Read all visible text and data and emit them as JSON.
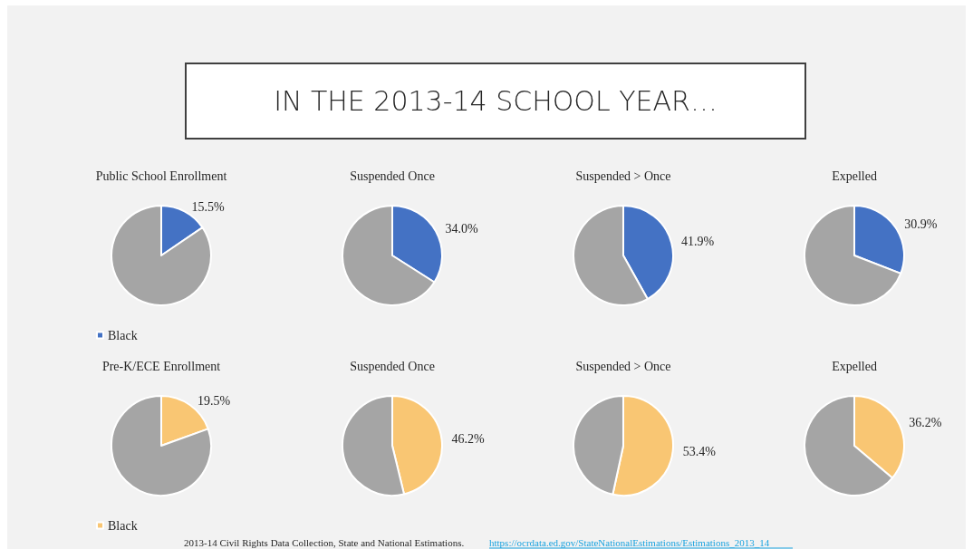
{
  "chart_data": [
    {
      "type": "other",
      "title": "IN THE 2013-14 SCHOOL YEAR…",
      "annotations": [
        "2013-14 Civil Rights Data Collection, State and National Estimations.",
        "https://ocrdata.ed.gov/StateNationalEstimations/Estimations_2013_14"
      ]
    },
    {
      "type": "pie",
      "title": "Public School Enrollment",
      "categories": [
        "Black",
        null
      ],
      "values": [
        15.5,
        84.5
      ],
      "colors": [
        "#4472c4",
        "#a5a5a5"
      ],
      "value_labels": [
        "15.5%",
        null
      ],
      "legend": "bottom"
    },
    {
      "type": "pie",
      "title": "Suspended Once",
      "categories": [
        null,
        null
      ],
      "values": [
        34.0,
        66.0
      ],
      "colors": [
        "#4472c4",
        "#a5a5a5"
      ],
      "value_labels": [
        "34.0%",
        null
      ]
    },
    {
      "type": "pie",
      "title": "Suspended > Once",
      "categories": [
        null,
        null
      ],
      "values": [
        41.9,
        58.1
      ],
      "colors": [
        "#4472c4",
        "#a5a5a5"
      ],
      "value_labels": [
        "41.9%",
        null
      ]
    },
    {
      "type": "pie",
      "title": "Expelled",
      "categories": [
        null,
        null
      ],
      "values": [
        30.9,
        69.1
      ],
      "colors": [
        "#4472c4",
        "#a5a5a5"
      ],
      "value_labels": [
        "30.9%",
        null
      ]
    },
    {
      "type": "pie",
      "title": "Pre-K/ECE Enrollment",
      "categories": [
        "Black",
        null
      ],
      "values": [
        19.5,
        80.5
      ],
      "colors": [
        "#f9c673",
        "#a5a5a5"
      ],
      "value_labels": [
        "19.5%",
        null
      ],
      "legend": "bottom"
    },
    {
      "type": "pie",
      "title": "Suspended Once",
      "categories": [
        null,
        null
      ],
      "values": [
        46.2,
        53.8
      ],
      "colors": [
        "#f9c673",
        "#a5a5a5"
      ],
      "value_labels": [
        "46.2%",
        null
      ]
    },
    {
      "type": "pie",
      "title": "Suspended > Once",
      "categories": [
        null,
        null
      ],
      "values": [
        53.4,
        46.6
      ],
      "colors": [
        "#f9c673",
        "#a5a5a5"
      ],
      "value_labels": [
        "53.4%",
        null
      ]
    },
    {
      "type": "pie",
      "title": "Expelled",
      "categories": [
        null,
        null
      ],
      "values": [
        36.2,
        63.8
      ],
      "colors": [
        "#f9c673",
        "#a5a5a5"
      ],
      "value_labels": [
        "36.2%",
        null
      ]
    }
  ]
}
